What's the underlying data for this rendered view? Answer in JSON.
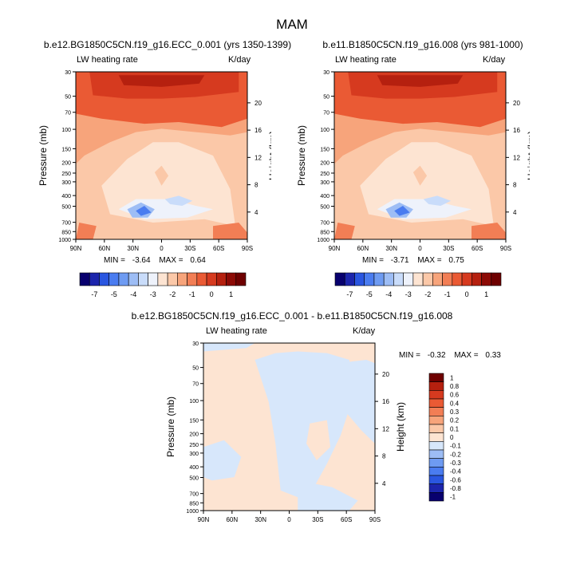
{
  "title": "MAM",
  "colors": {
    "levels_main": [
      "#08006e",
      "#1c25ac",
      "#2a56e0",
      "#4a7cf0",
      "#6e9bf2",
      "#9dbdf5",
      "#c9dcfa",
      "#eef2fb",
      "#fde4d2",
      "#fbc8a8",
      "#f7a47b",
      "#f27e55",
      "#ea5a34",
      "#d63a1f",
      "#b5200f",
      "#8c0a05",
      "#6e0000"
    ],
    "levels_diff": [
      "#08006e",
      "#1c25ac",
      "#2a56e0",
      "#4a7cf0",
      "#6e9bf2",
      "#9dbdf5",
      "#d7e7fb",
      "#fde4d2",
      "#fbc8a8",
      "#f7a47b",
      "#f27e55",
      "#ea5a34",
      "#d63a1f",
      "#b5200f",
      "#6e0000"
    ]
  },
  "panels": [
    {
      "title": "b.e12.BG1850C5CN.f19_g16.ECC_0.001 (yrs 1350-1399)",
      "left_label": "LW heating rate",
      "right_label": "K/day",
      "ylabel": "Pressure (mb)",
      "y2label": "Height (km)",
      "stats": {
        "min_label": "MIN =",
        "min": "-3.64",
        "max_label": "MAX =",
        "max": "0.64"
      }
    },
    {
      "title": "b.e11.B1850C5CN.f19_g16.008 (yrs 981-1000)",
      "left_label": "LW heating rate",
      "right_label": "K/day",
      "ylabel": "Pressure (mb)",
      "y2label": "Height (km)",
      "stats": {
        "min_label": "MIN =",
        "min": "-3.71",
        "max_label": "MAX =",
        "max": "0.75"
      }
    },
    {
      "title": "b.e12.BG1850C5CN.f19_g16.ECC_0.001 - b.e11.B1850C5CN.f19_g16.008",
      "left_label": "LW heating rate",
      "right_label": "K/day",
      "ylabel": "Pressure (mb)",
      "y2label": "Height (km)",
      "stats": {
        "min_label": "MIN =",
        "min": "-0.32",
        "max_label": "MAX =",
        "max": "0.33"
      }
    }
  ],
  "chart_data": [
    {
      "type": "heatmap",
      "title": "b.e12.BG1850C5CN.f19_g16.ECC_0.001 (yrs 1350-1399)",
      "xlabel": "",
      "ylabel": "Pressure (mb)",
      "y2label": "Height (km)",
      "x_ticks": [
        "90N",
        "60N",
        "30N",
        "0",
        "30S",
        "60S",
        "90S"
      ],
      "y_ticks": [
        "30",
        "50",
        "70",
        "100",
        "150",
        "200",
        "250",
        "300",
        "400",
        "500",
        "700",
        "850",
        "1000"
      ],
      "y2_ticks": [
        "20",
        "16",
        "12",
        "8",
        "4"
      ],
      "levels": [
        -7,
        -5,
        -4,
        -3,
        -2,
        -1,
        0,
        1
      ],
      "min": -3.64,
      "max": 0.64
    },
    {
      "type": "heatmap",
      "title": "b.e11.B1850C5CN.f19_g16.008 (yrs 981-1000)",
      "xlabel": "",
      "ylabel": "Pressure (mb)",
      "y2label": "Height (km)",
      "x_ticks": [
        "90N",
        "60N",
        "30N",
        "0",
        "30S",
        "60S",
        "90S"
      ],
      "y_ticks": [
        "30",
        "50",
        "70",
        "100",
        "150",
        "200",
        "250",
        "300",
        "400",
        "500",
        "700",
        "850",
        "1000"
      ],
      "y2_ticks": [
        "20",
        "16",
        "12",
        "8",
        "4"
      ],
      "levels": [
        -7,
        -5,
        -4,
        -3,
        -2,
        -1,
        0,
        1
      ],
      "min": -3.71,
      "max": 0.75
    },
    {
      "type": "heatmap",
      "title": "b.e12.BG1850C5CN.f19_g16.ECC_0.001 - b.e11.B1850C5CN.f19_g16.008",
      "xlabel": "",
      "ylabel": "Pressure (mb)",
      "y2label": "Height (km)",
      "x_ticks": [
        "90N",
        "60N",
        "30N",
        "0",
        "30S",
        "60S",
        "90S"
      ],
      "y_ticks": [
        "30",
        "50",
        "70",
        "100",
        "150",
        "200",
        "250",
        "300",
        "400",
        "500",
        "700",
        "850",
        "1000"
      ],
      "y2_ticks": [
        "20",
        "16",
        "12",
        "8",
        "4"
      ],
      "levels": [
        1,
        0.8,
        0.6,
        0.4,
        0.3,
        0.2,
        0.1,
        0,
        -0.1,
        -0.2,
        -0.3,
        -0.4,
        -0.6,
        -0.8,
        -1
      ],
      "min": -0.32,
      "max": 0.33
    }
  ]
}
